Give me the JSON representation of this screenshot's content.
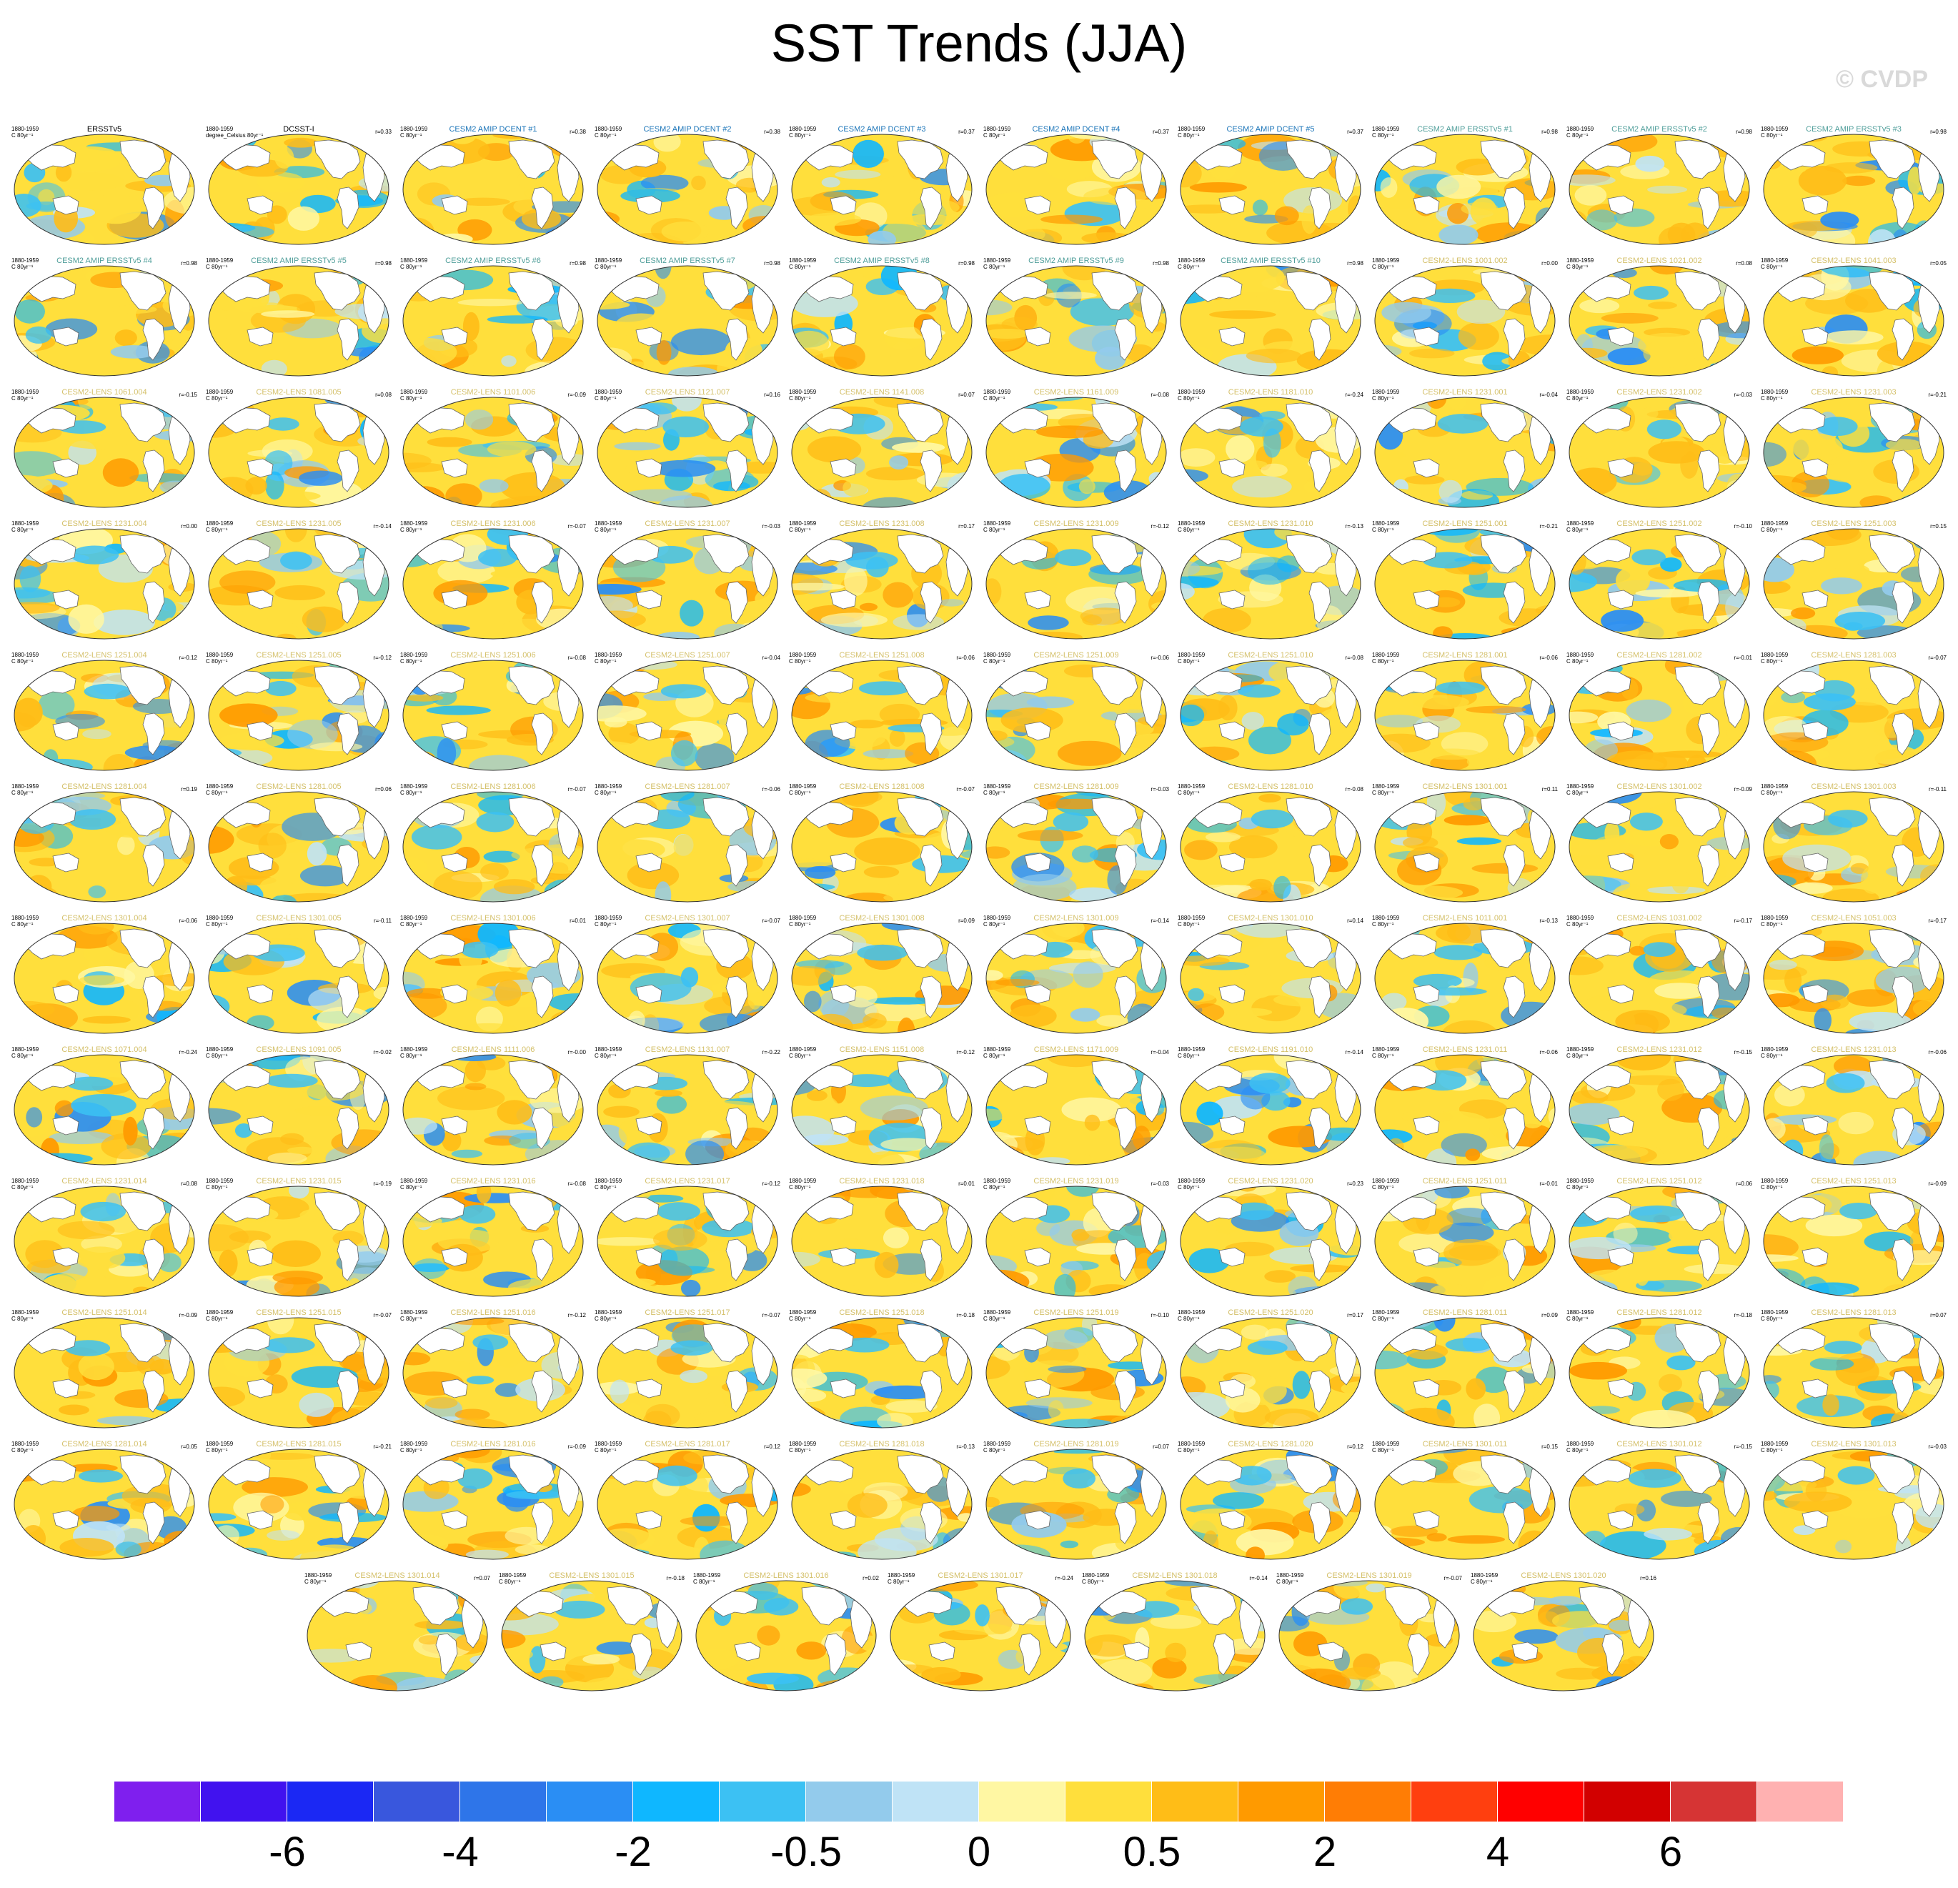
{
  "title": "SST Trends (JJA)",
  "watermark": "© CVDP",
  "colorbar": {
    "colors": [
      "#7f1fee",
      "#4112ef",
      "#1b28f4",
      "#3957dd",
      "#2e75e9",
      "#2a8ef4",
      "#0fb7ff",
      "#3cc1f3",
      "#93cbec",
      "#bfe3f6",
      "#fff7a3",
      "#ffdf3c",
      "#ffbd17",
      "#ff9a00",
      "#ff7d05",
      "#ff3f0f",
      "#ff0000",
      "#d20000",
      "#d63434",
      "#ffb1b1"
    ],
    "labels": [
      "-6",
      "-4",
      "-2",
      "-0.5",
      "0",
      "0.5",
      "2",
      "4",
      "6"
    ]
  },
  "panels": [
    {
      "title": "ERSSTv5",
      "color": "#000000",
      "period": "1880-1959",
      "units": "C 80yr⁻¹",
      "r": ""
    },
    {
      "title": "DCSST-I",
      "color": "#000000",
      "period": "1880-1959",
      "units": "degree_Celsius 80yr⁻¹",
      "r": "r=0.33"
    },
    {
      "title": "CESM2 AMIP DCENT #1",
      "color": "#1a74b8",
      "period": "1880-1959",
      "units": "C 80yr⁻¹",
      "r": "r=0.38"
    },
    {
      "title": "CESM2 AMIP DCENT #2",
      "color": "#1a74b8",
      "period": "1880-1959",
      "units": "C 80yr⁻¹",
      "r": "r=0.38"
    },
    {
      "title": "CESM2 AMIP DCENT #3",
      "color": "#1a74b8",
      "period": "1880-1959",
      "units": "C 80yr⁻¹",
      "r": "r=0.37"
    },
    {
      "title": "CESM2 AMIP DCENT #4",
      "color": "#1a74b8",
      "period": "1880-1959",
      "units": "C 80yr⁻¹",
      "r": "r=0.37"
    },
    {
      "title": "CESM2 AMIP DCENT #5",
      "color": "#1a74b8",
      "period": "1880-1959",
      "units": "C 80yr⁻¹",
      "r": "r=0.37"
    },
    {
      "title": "CESM2 AMIP ERSSTv5 #1",
      "color": "#4f9e9a",
      "period": "1880-1959",
      "units": "C 80yr⁻¹",
      "r": "r=0.98"
    },
    {
      "title": "CESM2 AMIP ERSSTv5 #2",
      "color": "#4f9e9a",
      "period": "1880-1959",
      "units": "C 80yr⁻¹",
      "r": "r=0.98"
    },
    {
      "title": "CESM2 AMIP ERSSTv5 #3",
      "color": "#4f9e9a",
      "period": "1880-1959",
      "units": "C 80yr⁻¹",
      "r": "r=0.98"
    },
    {
      "title": "CESM2 AMIP ERSSTv5 #4",
      "color": "#4f9e9a",
      "period": "1880-1959",
      "units": "C 80yr⁻¹",
      "r": "r=0.98"
    },
    {
      "title": "CESM2 AMIP ERSSTv5 #5",
      "color": "#4f9e9a",
      "period": "1880-1959",
      "units": "C 80yr⁻¹",
      "r": "r=0.98"
    },
    {
      "title": "CESM2 AMIP ERSSTv5 #6",
      "color": "#4f9e9a",
      "period": "1880-1959",
      "units": "C 80yr⁻¹",
      "r": "r=0.98"
    },
    {
      "title": "CESM2 AMIP ERSSTv5 #7",
      "color": "#4f9e9a",
      "period": "1880-1959",
      "units": "C 80yr⁻¹",
      "r": "r=0.98"
    },
    {
      "title": "CESM2 AMIP ERSSTv5 #8",
      "color": "#4f9e9a",
      "period": "1880-1959",
      "units": "C 80yr⁻¹",
      "r": "r=0.98"
    },
    {
      "title": "CESM2 AMIP ERSSTv5 #9",
      "color": "#4f9e9a",
      "period": "1880-1959",
      "units": "C 80yr⁻¹",
      "r": "r=0.98"
    },
    {
      "title": "CESM2 AMIP ERSSTv5 #10",
      "color": "#4f9e9a",
      "period": "1880-1959",
      "units": "C 80yr⁻¹",
      "r": "r=0.98"
    },
    {
      "title": "CESM2-LENS 1001.002",
      "color": "#d4c06a",
      "period": "1880-1959",
      "units": "C 80yr⁻¹",
      "r": "r=0.00"
    },
    {
      "title": "CESM2-LENS 1021.002",
      "color": "#d4c06a",
      "period": "1880-1959",
      "units": "C 80yr⁻¹",
      "r": "r=0.08"
    },
    {
      "title": "CESM2-LENS 1041.003",
      "color": "#d4c06a",
      "period": "1880-1959",
      "units": "C 80yr⁻¹",
      "r": "r=0.05"
    },
    {
      "title": "CESM2-LENS 1061.004",
      "color": "#d4c06a",
      "period": "1880-1959",
      "units": "C 80yr⁻¹",
      "r": "r=-0.15"
    },
    {
      "title": "CESM2-LENS 1081.005",
      "color": "#d4c06a",
      "period": "1880-1959",
      "units": "C 80yr⁻¹",
      "r": "r=0.08"
    },
    {
      "title": "CESM2-LENS 1101.006",
      "color": "#d4c06a",
      "period": "1880-1959",
      "units": "C 80yr⁻¹",
      "r": "r=-0.09"
    },
    {
      "title": "CESM2-LENS 1121.007",
      "color": "#d4c06a",
      "period": "1880-1959",
      "units": "C 80yr⁻¹",
      "r": "r=0.16"
    },
    {
      "title": "CESM2-LENS 1141.008",
      "color": "#d4c06a",
      "period": "1880-1959",
      "units": "C 80yr⁻¹",
      "r": "r=0.07"
    },
    {
      "title": "CESM2-LENS 1161.009",
      "color": "#d4c06a",
      "period": "1880-1959",
      "units": "C 80yr⁻¹",
      "r": "r=-0.08"
    },
    {
      "title": "CESM2-LENS 1181.010",
      "color": "#d4c06a",
      "period": "1880-1959",
      "units": "C 80yr⁻¹",
      "r": "r=-0.24"
    },
    {
      "title": "CESM2-LENS 1231.001",
      "color": "#d4c06a",
      "period": "1880-1959",
      "units": "C 80yr⁻¹",
      "r": "r=-0.04"
    },
    {
      "title": "CESM2-LENS 1231.002",
      "color": "#d4c06a",
      "period": "1880-1959",
      "units": "C 80yr⁻¹",
      "r": "r=-0.03"
    },
    {
      "title": "CESM2-LENS 1231.003",
      "color": "#d4c06a",
      "period": "1880-1959",
      "units": "C 80yr⁻¹",
      "r": "r=-0.21"
    },
    {
      "title": "CESM2-LENS 1231.004",
      "color": "#d4c06a",
      "period": "1880-1959",
      "units": "C 80yr⁻¹",
      "r": "r=0.00"
    },
    {
      "title": "CESM2-LENS 1231.005",
      "color": "#d4c06a",
      "period": "1880-1959",
      "units": "C 80yr⁻¹",
      "r": "r=-0.14"
    },
    {
      "title": "CESM2-LENS 1231.006",
      "color": "#d4c06a",
      "period": "1880-1959",
      "units": "C 80yr⁻¹",
      "r": "r=-0.07"
    },
    {
      "title": "CESM2-LENS 1231.007",
      "color": "#d4c06a",
      "period": "1880-1959",
      "units": "C 80yr⁻¹",
      "r": "r=-0.03"
    },
    {
      "title": "CESM2-LENS 1231.008",
      "color": "#d4c06a",
      "period": "1880-1959",
      "units": "C 80yr⁻¹",
      "r": "r=0.17"
    },
    {
      "title": "CESM2-LENS 1231.009",
      "color": "#d4c06a",
      "period": "1880-1959",
      "units": "C 80yr⁻¹",
      "r": "r=-0.12"
    },
    {
      "title": "CESM2-LENS 1231.010",
      "color": "#d4c06a",
      "period": "1880-1959",
      "units": "C 80yr⁻¹",
      "r": "r=-0.13"
    },
    {
      "title": "CESM2-LENS 1251.001",
      "color": "#d4c06a",
      "period": "1880-1959",
      "units": "C 80yr⁻¹",
      "r": "r=-0.21"
    },
    {
      "title": "CESM2-LENS 1251.002",
      "color": "#d4c06a",
      "period": "1880-1959",
      "units": "C 80yr⁻¹",
      "r": "r=-0.10"
    },
    {
      "title": "CESM2-LENS 1251.003",
      "color": "#d4c06a",
      "period": "1880-1959",
      "units": "C 80yr⁻¹",
      "r": "r=0.15"
    },
    {
      "title": "CESM2-LENS 1251.004",
      "color": "#d4c06a",
      "period": "1880-1959",
      "units": "C 80yr⁻¹",
      "r": "r=-0.12"
    },
    {
      "title": "CESM2-LENS 1251.005",
      "color": "#d4c06a",
      "period": "1880-1959",
      "units": "C 80yr⁻¹",
      "r": "r=-0.12"
    },
    {
      "title": "CESM2-LENS 1251.006",
      "color": "#d4c06a",
      "period": "1880-1959",
      "units": "C 80yr⁻¹",
      "r": "r=-0.08"
    },
    {
      "title": "CESM2-LENS 1251.007",
      "color": "#d4c06a",
      "period": "1880-1959",
      "units": "C 80yr⁻¹",
      "r": "r=-0.04"
    },
    {
      "title": "CESM2-LENS 1251.008",
      "color": "#d4c06a",
      "period": "1880-1959",
      "units": "C 80yr⁻¹",
      "r": "r=-0.06"
    },
    {
      "title": "CESM2-LENS 1251.009",
      "color": "#d4c06a",
      "period": "1880-1959",
      "units": "C 80yr⁻¹",
      "r": "r=-0.06"
    },
    {
      "title": "CESM2-LENS 1251.010",
      "color": "#d4c06a",
      "period": "1880-1959",
      "units": "C 80yr⁻¹",
      "r": "r=-0.08"
    },
    {
      "title": "CESM2-LENS 1281.001",
      "color": "#d4c06a",
      "period": "1880-1959",
      "units": "C 80yr⁻¹",
      "r": "r=-0.06"
    },
    {
      "title": "CESM2-LENS 1281.002",
      "color": "#d4c06a",
      "period": "1880-1959",
      "units": "C 80yr⁻¹",
      "r": "r=-0.01"
    },
    {
      "title": "CESM2-LENS 1281.003",
      "color": "#d4c06a",
      "period": "1880-1959",
      "units": "C 80yr⁻¹",
      "r": "r=-0.07"
    },
    {
      "title": "CESM2-LENS 1281.004",
      "color": "#d4c06a",
      "period": "1880-1959",
      "units": "C 80yr⁻¹",
      "r": "r=0.19"
    },
    {
      "title": "CESM2-LENS 1281.005",
      "color": "#d4c06a",
      "period": "1880-1959",
      "units": "C 80yr⁻¹",
      "r": "r=0.06"
    },
    {
      "title": "CESM2-LENS 1281.006",
      "color": "#d4c06a",
      "period": "1880-1959",
      "units": "C 80yr⁻¹",
      "r": "r=-0.07"
    },
    {
      "title": "CESM2-LENS 1281.007",
      "color": "#d4c06a",
      "period": "1880-1959",
      "units": "C 80yr⁻¹",
      "r": "r=-0.06"
    },
    {
      "title": "CESM2-LENS 1281.008",
      "color": "#d4c06a",
      "period": "1880-1959",
      "units": "C 80yr⁻¹",
      "r": "r=-0.07"
    },
    {
      "title": "CESM2-LENS 1281.009",
      "color": "#d4c06a",
      "period": "1880-1959",
      "units": "C 80yr⁻¹",
      "r": "r=-0.03"
    },
    {
      "title": "CESM2-LENS 1281.010",
      "color": "#d4c06a",
      "period": "1880-1959",
      "units": "C 80yr⁻¹",
      "r": "r=-0.08"
    },
    {
      "title": "CESM2-LENS 1301.001",
      "color": "#d4c06a",
      "period": "1880-1959",
      "units": "C 80yr⁻¹",
      "r": "r=0.11"
    },
    {
      "title": "CESM2-LENS 1301.002",
      "color": "#d4c06a",
      "period": "1880-1959",
      "units": "C 80yr⁻¹",
      "r": "r=-0.09"
    },
    {
      "title": "CESM2-LENS 1301.003",
      "color": "#d4c06a",
      "period": "1880-1959",
      "units": "C 80yr⁻¹",
      "r": "r=-0.11"
    },
    {
      "title": "CESM2-LENS 1301.004",
      "color": "#d4c06a",
      "period": "1880-1959",
      "units": "C 80yr⁻¹",
      "r": "r=-0.06"
    },
    {
      "title": "CESM2-LENS 1301.005",
      "color": "#d4c06a",
      "period": "1880-1959",
      "units": "C 80yr⁻¹",
      "r": "r=-0.11"
    },
    {
      "title": "CESM2-LENS 1301.006",
      "color": "#d4c06a",
      "period": "1880-1959",
      "units": "C 80yr⁻¹",
      "r": "r=0.01"
    },
    {
      "title": "CESM2-LENS 1301.007",
      "color": "#d4c06a",
      "period": "1880-1959",
      "units": "C 80yr⁻¹",
      "r": "r=-0.07"
    },
    {
      "title": "CESM2-LENS 1301.008",
      "color": "#d4c06a",
      "period": "1880-1959",
      "units": "C 80yr⁻¹",
      "r": "r=0.09"
    },
    {
      "title": "CESM2-LENS 1301.009",
      "color": "#d4c06a",
      "period": "1880-1959",
      "units": "C 80yr⁻¹",
      "r": "r=-0.14"
    },
    {
      "title": "CESM2-LENS 1301.010",
      "color": "#d4c06a",
      "period": "1880-1959",
      "units": "C 80yr⁻¹",
      "r": "r=0.14"
    },
    {
      "title": "CESM2-LENS 1011.001",
      "color": "#d4c06a",
      "period": "1880-1959",
      "units": "C 80yr⁻¹",
      "r": "r=-0.13"
    },
    {
      "title": "CESM2-LENS 1031.002",
      "color": "#d4c06a",
      "period": "1880-1959",
      "units": "C 80yr⁻¹",
      "r": "r=-0.17"
    },
    {
      "title": "CESM2-LENS 1051.003",
      "color": "#d4c06a",
      "period": "1880-1959",
      "units": "C 80yr⁻¹",
      "r": "r=-0.17"
    },
    {
      "title": "CESM2-LENS 1071.004",
      "color": "#d4c06a",
      "period": "1880-1959",
      "units": "C 80yr⁻¹",
      "r": "r=-0.24"
    },
    {
      "title": "CESM2-LENS 1091.005",
      "color": "#d4c06a",
      "period": "1880-1959",
      "units": "C 80yr⁻¹",
      "r": "r=-0.02"
    },
    {
      "title": "CESM2-LENS 1111.006",
      "color": "#d4c06a",
      "period": "1880-1959",
      "units": "C 80yr⁻¹",
      "r": "r=-0.00"
    },
    {
      "title": "CESM2-LENS 1131.007",
      "color": "#d4c06a",
      "period": "1880-1959",
      "units": "C 80yr⁻¹",
      "r": "r=-0.22"
    },
    {
      "title": "CESM2-LENS 1151.008",
      "color": "#d4c06a",
      "period": "1880-1959",
      "units": "C 80yr⁻¹",
      "r": "r=-0.12"
    },
    {
      "title": "CESM2-LENS 1171.009",
      "color": "#d4c06a",
      "period": "1880-1959",
      "units": "C 80yr⁻¹",
      "r": "r=-0.04"
    },
    {
      "title": "CESM2-LENS 1191.010",
      "color": "#d4c06a",
      "period": "1880-1959",
      "units": "C 80yr⁻¹",
      "r": "r=-0.14"
    },
    {
      "title": "CESM2-LENS 1231.011",
      "color": "#d4c06a",
      "period": "1880-1959",
      "units": "C 80yr⁻¹",
      "r": "r=-0.06"
    },
    {
      "title": "CESM2-LENS 1231.012",
      "color": "#d4c06a",
      "period": "1880-1959",
      "units": "C 80yr⁻¹",
      "r": "r=-0.15"
    },
    {
      "title": "CESM2-LENS 1231.013",
      "color": "#d4c06a",
      "period": "1880-1959",
      "units": "C 80yr⁻¹",
      "r": "r=-0.06"
    },
    {
      "title": "CESM2-LENS 1231.014",
      "color": "#d4c06a",
      "period": "1880-1959",
      "units": "C 80yr⁻¹",
      "r": "r=0.08"
    },
    {
      "title": "CESM2-LENS 1231.015",
      "color": "#d4c06a",
      "period": "1880-1959",
      "units": "C 80yr⁻¹",
      "r": "r=-0.19"
    },
    {
      "title": "CESM2-LENS 1231.016",
      "color": "#d4c06a",
      "period": "1880-1959",
      "units": "C 80yr⁻¹",
      "r": "r=-0.08"
    },
    {
      "title": "CESM2-LENS 1231.017",
      "color": "#d4c06a",
      "period": "1880-1959",
      "units": "C 80yr⁻¹",
      "r": "r=-0.12"
    },
    {
      "title": "CESM2-LENS 1231.018",
      "color": "#d4c06a",
      "period": "1880-1959",
      "units": "C 80yr⁻¹",
      "r": "r=0.01"
    },
    {
      "title": "CESM2-LENS 1231.019",
      "color": "#d4c06a",
      "period": "1880-1959",
      "units": "C 80yr⁻¹",
      "r": "r=-0.03"
    },
    {
      "title": "CESM2-LENS 1231.020",
      "color": "#d4c06a",
      "period": "1880-1959",
      "units": "C 80yr⁻¹",
      "r": "r=0.23"
    },
    {
      "title": "CESM2-LENS 1251.011",
      "color": "#d4c06a",
      "period": "1880-1959",
      "units": "C 80yr⁻¹",
      "r": "r=-0.01"
    },
    {
      "title": "CESM2-LENS 1251.012",
      "color": "#d4c06a",
      "period": "1880-1959",
      "units": "C 80yr⁻¹",
      "r": "r=0.06"
    },
    {
      "title": "CESM2-LENS 1251.013",
      "color": "#d4c06a",
      "period": "1880-1959",
      "units": "C 80yr⁻¹",
      "r": "r=-0.09"
    },
    {
      "title": "CESM2-LENS 1251.014",
      "color": "#d4c06a",
      "period": "1880-1959",
      "units": "C 80yr⁻¹",
      "r": "r=-0.09"
    },
    {
      "title": "CESM2-LENS 1251.015",
      "color": "#d4c06a",
      "period": "1880-1959",
      "units": "C 80yr⁻¹",
      "r": "r=-0.07"
    },
    {
      "title": "CESM2-LENS 1251.016",
      "color": "#d4c06a",
      "period": "1880-1959",
      "units": "C 80yr⁻¹",
      "r": "r=-0.12"
    },
    {
      "title": "CESM2-LENS 1251.017",
      "color": "#d4c06a",
      "period": "1880-1959",
      "units": "C 80yr⁻¹",
      "r": "r=-0.07"
    },
    {
      "title": "CESM2-LENS 1251.018",
      "color": "#d4c06a",
      "period": "1880-1959",
      "units": "C 80yr⁻¹",
      "r": "r=-0.18"
    },
    {
      "title": "CESM2-LENS 1251.019",
      "color": "#d4c06a",
      "period": "1880-1959",
      "units": "C 80yr⁻¹",
      "r": "r=-0.10"
    },
    {
      "title": "CESM2-LENS 1251.020",
      "color": "#d4c06a",
      "period": "1880-1959",
      "units": "C 80yr⁻¹",
      "r": "r=0.17"
    },
    {
      "title": "CESM2-LENS 1281.011",
      "color": "#d4c06a",
      "period": "1880-1959",
      "units": "C 80yr⁻¹",
      "r": "r=0.09"
    },
    {
      "title": "CESM2-LENS 1281.012",
      "color": "#d4c06a",
      "period": "1880-1959",
      "units": "C 80yr⁻¹",
      "r": "r=-0.18"
    },
    {
      "title": "CESM2-LENS 1281.013",
      "color": "#d4c06a",
      "period": "1880-1959",
      "units": "C 80yr⁻¹",
      "r": "r=0.07"
    },
    {
      "title": "CESM2-LENS 1281.014",
      "color": "#d4c06a",
      "period": "1880-1959",
      "units": "C 80yr⁻¹",
      "r": "r=0.05"
    },
    {
      "title": "CESM2-LENS 1281.015",
      "color": "#d4c06a",
      "period": "1880-1959",
      "units": "C 80yr⁻¹",
      "r": "r=-0.21"
    },
    {
      "title": "CESM2-LENS 1281.016",
      "color": "#d4c06a",
      "period": "1880-1959",
      "units": "C 80yr⁻¹",
      "r": "r=-0.09"
    },
    {
      "title": "CESM2-LENS 1281.017",
      "color": "#d4c06a",
      "period": "1880-1959",
      "units": "C 80yr⁻¹",
      "r": "r=0.12"
    },
    {
      "title": "CESM2-LENS 1281.018",
      "color": "#d4c06a",
      "period": "1880-1959",
      "units": "C 80yr⁻¹",
      "r": "r=-0.13"
    },
    {
      "title": "CESM2-LENS 1281.019",
      "color": "#d4c06a",
      "period": "1880-1959",
      "units": "C 80yr⁻¹",
      "r": "r=0.07"
    },
    {
      "title": "CESM2-LENS 1281.020",
      "color": "#d4c06a",
      "period": "1880-1959",
      "units": "C 80yr⁻¹",
      "r": "r=0.12"
    },
    {
      "title": "CESM2-LENS 1301.011",
      "color": "#d4c06a",
      "period": "1880-1959",
      "units": "C 80yr⁻¹",
      "r": "r=0.15"
    },
    {
      "title": "CESM2-LENS 1301.012",
      "color": "#d4c06a",
      "period": "1880-1959",
      "units": "C 80yr⁻¹",
      "r": "r=-0.15"
    },
    {
      "title": "CESM2-LENS 1301.013",
      "color": "#d4c06a",
      "period": "1880-1959",
      "units": "C 80yr⁻¹",
      "r": "r=-0.03"
    },
    {
      "title": "CESM2-LENS 1301.014",
      "color": "#d4c06a",
      "period": "1880-1959",
      "units": "C 80yr⁻¹",
      "r": "r=0.07"
    },
    {
      "title": "CESM2-LENS 1301.015",
      "color": "#d4c06a",
      "period": "1880-1959",
      "units": "C 80yr⁻¹",
      "r": "r=-0.18"
    },
    {
      "title": "CESM2-LENS 1301.016",
      "color": "#d4c06a",
      "period": "1880-1959",
      "units": "C 80yr⁻¹",
      "r": "r=0.02"
    },
    {
      "title": "CESM2-LENS 1301.017",
      "color": "#d4c06a",
      "period": "1880-1959",
      "units": "C 80yr⁻¹",
      "r": "r=-0.24"
    },
    {
      "title": "CESM2-LENS 1301.018",
      "color": "#d4c06a",
      "period": "1880-1959",
      "units": "C 80yr⁻¹",
      "r": "r=-0.14"
    },
    {
      "title": "CESM2-LENS 1301.019",
      "color": "#d4c06a",
      "period": "1880-1959",
      "units": "C 80yr⁻¹",
      "r": "r=-0.07"
    },
    {
      "title": "CESM2-LENS 1301.020",
      "color": "#d4c06a",
      "period": "1880-1959",
      "units": "C 80yr⁻¹",
      "r": "r=0.16"
    }
  ]
}
